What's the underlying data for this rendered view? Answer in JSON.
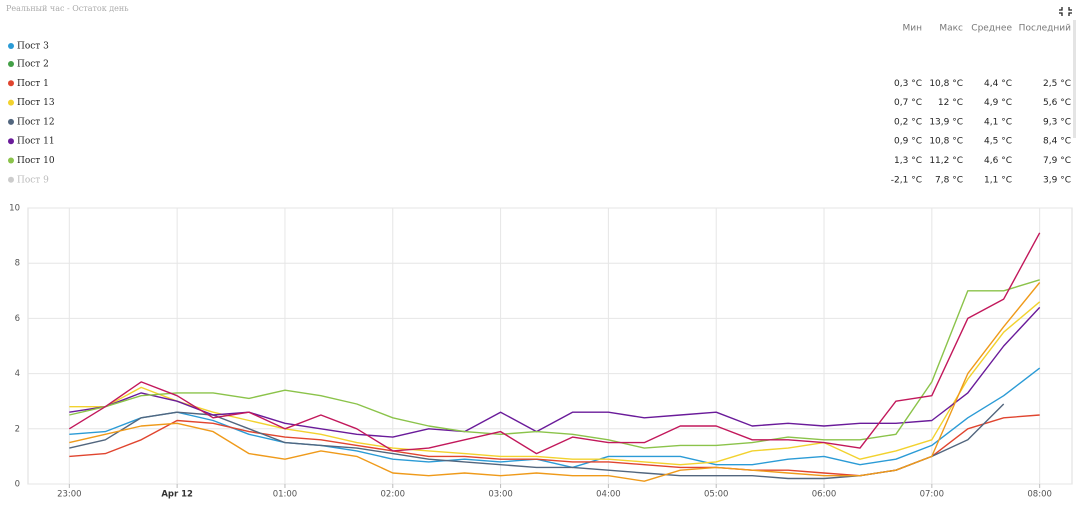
{
  "chart_data": {
    "type": "line",
    "title": "Реальный час - Остаток день",
    "stats_headers": [
      "Мин",
      "Макс",
      "Среднее",
      "Последний"
    ],
    "x": [
      "23:00",
      "23:20",
      "23:40",
      "00:00",
      "00:20",
      "00:40",
      "01:00",
      "01:20",
      "01:40",
      "02:00",
      "02:20",
      "02:40",
      "03:00",
      "03:20",
      "03:40",
      "04:00",
      "04:20",
      "04:40",
      "05:00",
      "05:20",
      "05:40",
      "06:00",
      "06:20",
      "06:40",
      "07:00",
      "07:20",
      "07:40",
      "08:00"
    ],
    "xlim": [
      "22:37",
      "08:18"
    ],
    "xticks": [
      "23:00",
      {
        "value": "00:00",
        "label": "Apr 12"
      },
      "01:00",
      "02:00",
      "03:00",
      "04:00",
      "05:00",
      "06:00",
      "07:00",
      "08:00"
    ],
    "ylim": [
      0,
      10
    ],
    "yticks": [
      0,
      2,
      4,
      6,
      8,
      10
    ],
    "grid": true,
    "series": [
      {
        "name": "Пост 3",
        "color": "#2b9bd6",
        "values": [
          1.8,
          1.9,
          2.4,
          2.6,
          2.3,
          1.8,
          1.5,
          1.4,
          1.2,
          0.9,
          0.8,
          0.9,
          0.8,
          0.9,
          0.6,
          1.0,
          1.0,
          1.0,
          0.7,
          0.7,
          0.9,
          1.0,
          0.7,
          0.9,
          1.4,
          2.4,
          3.2,
          4.2
        ]
      },
      {
        "name": "Пост 2",
        "color": "#43a047"
      },
      {
        "name": "Пост 1",
        "color": "#e0452f",
        "stats": [
          "0,3 °C",
          "10,8 °C",
          "4,4 °C",
          "2,5 °C"
        ],
        "values": [
          1.0,
          1.1,
          1.6,
          2.3,
          2.2,
          1.9,
          1.7,
          1.6,
          1.4,
          1.2,
          1.0,
          1.0,
          0.9,
          0.9,
          0.8,
          0.8,
          0.7,
          0.6,
          0.6,
          0.5,
          0.5,
          0.4,
          0.3,
          0.5,
          1.0,
          2.0,
          2.4,
          2.5
        ]
      },
      {
        "name": "Пост 13",
        "color": "#f2d22e",
        "stats": [
          "0,7 °C",
          "12 °C",
          "4,9 °C",
          "5,6 °C"
        ],
        "values": [
          2.8,
          2.8,
          3.5,
          3.0,
          2.6,
          2.3,
          2.0,
          1.8,
          1.5,
          1.3,
          1.2,
          1.1,
          1.0,
          1.0,
          0.9,
          0.9,
          0.8,
          0.7,
          0.8,
          1.2,
          1.3,
          1.5,
          0.9,
          1.2,
          1.6,
          3.8,
          5.5,
          6.6
        ]
      },
      {
        "name": "Пост 12",
        "color": "#52667e",
        "stats": [
          "0,2 °C",
          "13,9 °C",
          "4,1 °C",
          "9,3 °C"
        ],
        "values": [
          1.3,
          1.6,
          2.4,
          2.6,
          2.5,
          2.0,
          1.5,
          1.4,
          1.3,
          1.1,
          0.9,
          0.8,
          0.7,
          0.6,
          0.6,
          0.5,
          0.4,
          0.3,
          0.3,
          0.3,
          0.2,
          0.2,
          0.3,
          0.5,
          1.0,
          1.6,
          2.9,
          null
        ]
      },
      {
        "name": "Пост 11",
        "color": "#6a1b9a",
        "stats": [
          "0,9 °C",
          "10,8 °C",
          "4,5 °C",
          "8,4 °C"
        ],
        "values": [
          2.6,
          2.8,
          3.3,
          3.0,
          2.5,
          2.6,
          2.2,
          2.0,
          1.8,
          1.7,
          2.0,
          1.9,
          2.6,
          1.9,
          2.6,
          2.6,
          2.4,
          2.5,
          2.6,
          2.1,
          2.2,
          2.1,
          2.2,
          2.2,
          2.3,
          3.3,
          5.0,
          6.4
        ]
      },
      {
        "name": "Пост 10",
        "color": "#8bc34a",
        "stats": [
          "1,3 °C",
          "11,2 °C",
          "4,6 °C",
          "7,9 °C"
        ],
        "values": [
          2.5,
          2.8,
          3.2,
          3.3,
          3.3,
          3.1,
          3.4,
          3.2,
          2.9,
          2.4,
          2.1,
          1.9,
          1.8,
          1.9,
          1.8,
          1.6,
          1.3,
          1.4,
          1.4,
          1.5,
          1.7,
          1.6,
          1.6,
          1.8,
          3.7,
          7.0,
          7.0,
          7.4
        ]
      },
      {
        "name": "Пост 9",
        "color": "#cccccc",
        "hidden": true,
        "stats": [
          "-2,1 °C",
          "7,8 °C",
          "1,1 °C",
          "3,9 °C"
        ]
      },
      {
        "color": "#ef9a1a",
        "values": [
          1.5,
          1.8,
          2.1,
          2.2,
          1.9,
          1.1,
          0.9,
          1.2,
          1.0,
          0.4,
          0.3,
          0.4,
          0.3,
          0.4,
          0.3,
          0.3,
          0.1,
          0.5,
          0.6,
          0.5,
          0.4,
          0.3,
          0.3,
          0.5,
          1.0,
          4.0,
          5.7,
          7.3
        ]
      },
      {
        "color": "#c2185b",
        "values": [
          2.0,
          2.8,
          3.7,
          3.2,
          2.4,
          2.6,
          2.0,
          2.5,
          2.0,
          1.2,
          1.3,
          1.6,
          1.9,
          1.1,
          1.7,
          1.5,
          1.5,
          2.1,
          2.1,
          1.6,
          1.6,
          1.5,
          1.3,
          3.0,
          3.2,
          6.0,
          6.7,
          9.1
        ]
      }
    ]
  }
}
